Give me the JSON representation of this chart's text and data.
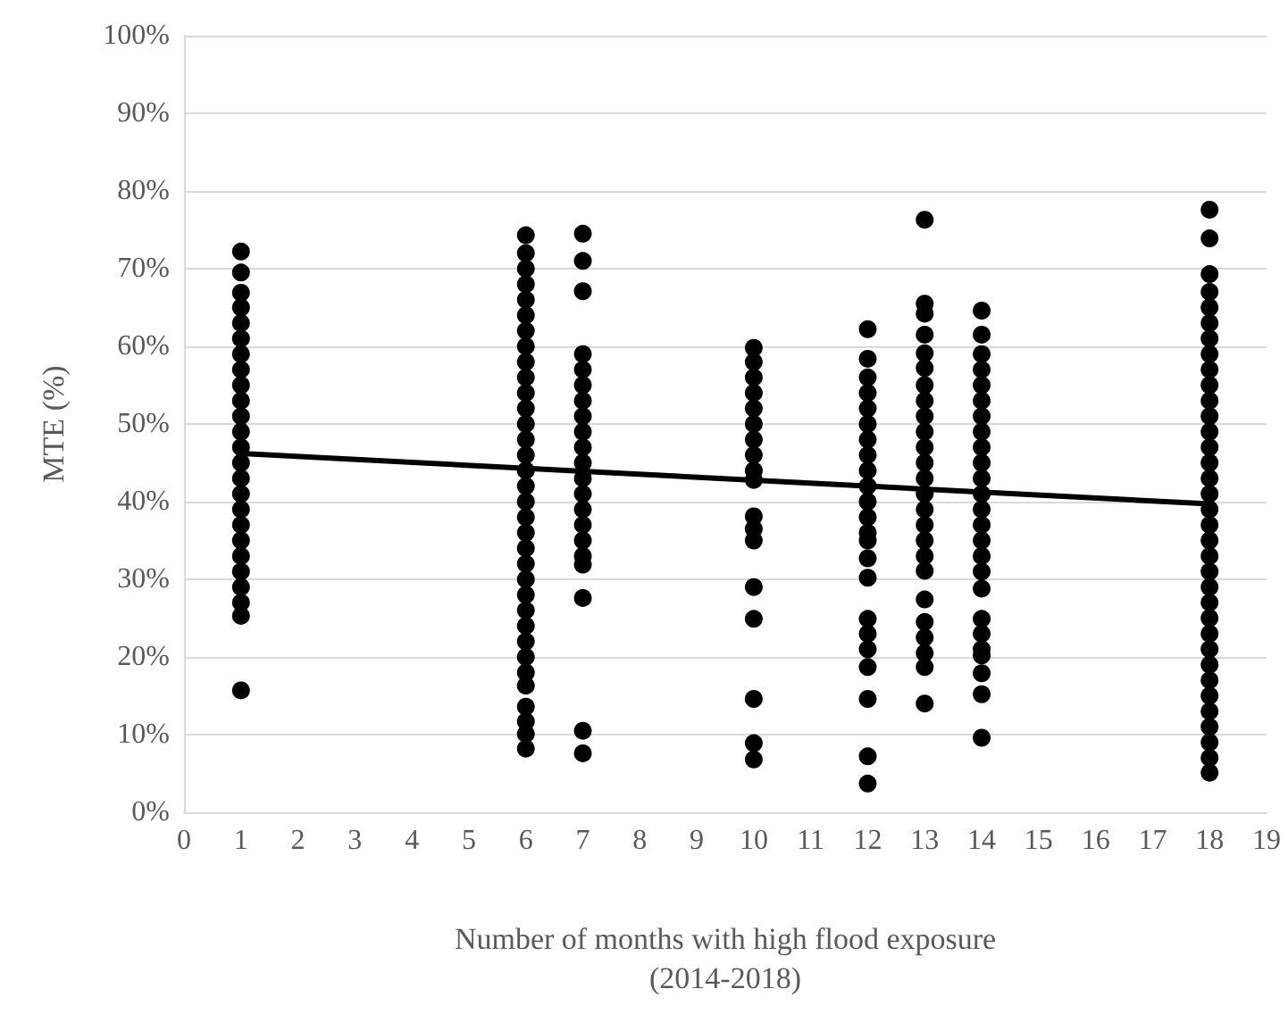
{
  "chart_data": {
    "type": "scatter",
    "xlabel": "Number of months with high flood exposure\n(2014-2018)",
    "ylabel": "MTE (%)",
    "xlim": [
      0,
      19
    ],
    "xticks": [
      0,
      1,
      2,
      3,
      4,
      5,
      6,
      7,
      8,
      9,
      10,
      11,
      12,
      13,
      14,
      15,
      16,
      17,
      18,
      19
    ],
    "ylim": [
      0,
      100
    ],
    "yticks": [
      {
        "value": 0,
        "label": "0%"
      },
      {
        "value": 10,
        "label": "10%"
      },
      {
        "value": 20,
        "label": "20%"
      },
      {
        "value": 30,
        "label": "30%"
      },
      {
        "value": 40,
        "label": "40%"
      },
      {
        "value": 50,
        "label": "50%"
      },
      {
        "value": 60,
        "label": "60%"
      },
      {
        "value": 70,
        "label": "70%"
      },
      {
        "value": 80,
        "label": "80%"
      },
      {
        "value": 90,
        "label": "90%"
      },
      {
        "value": 100,
        "label": "100%"
      }
    ],
    "grid": "y",
    "series": [
      {
        "color": "#000000",
        "marker": "circle",
        "x": [
          1,
          1,
          1,
          1,
          1,
          1,
          1,
          1,
          1,
          1,
          1,
          1,
          1,
          1,
          1,
          1,
          1,
          1,
          1,
          1,
          1,
          1,
          1,
          1,
          1,
          6,
          6,
          6,
          6,
          6,
          6,
          6,
          6,
          6,
          6,
          6,
          6,
          6,
          6,
          6,
          6,
          6,
          6,
          6,
          6,
          6,
          6,
          6,
          6,
          6,
          6,
          6,
          6,
          6,
          6,
          6,
          6,
          6,
          6,
          7,
          7,
          7,
          7,
          7,
          7,
          7,
          7,
          7,
          7,
          7,
          7,
          7,
          7,
          7,
          7,
          7,
          7,
          7,
          7,
          7,
          10,
          10,
          10,
          10,
          10,
          10,
          10,
          10,
          10,
          10,
          10,
          10,
          10,
          10,
          10,
          10,
          10,
          10,
          12,
          12,
          12,
          12,
          12,
          12,
          12,
          12,
          12,
          12,
          12,
          12,
          12,
          12,
          12,
          12,
          12,
          12,
          12,
          12,
          12,
          12,
          12,
          13,
          13,
          13,
          13,
          13,
          13,
          13,
          13,
          13,
          13,
          13,
          13,
          13,
          13,
          13,
          13,
          13,
          13,
          13,
          13,
          13,
          13,
          13,
          13,
          13,
          14,
          14,
          14,
          14,
          14,
          14,
          14,
          14,
          14,
          14,
          14,
          14,
          14,
          14,
          14,
          14,
          14,
          14,
          14,
          14,
          14,
          14,
          14,
          14,
          14,
          18,
          18,
          18,
          18,
          18,
          18,
          18,
          18,
          18,
          18,
          18,
          18,
          18,
          18,
          18,
          18,
          18,
          18,
          18,
          18,
          18,
          18,
          18,
          18,
          18,
          18,
          18,
          18,
          18,
          18,
          18,
          18,
          18,
          18,
          18
        ],
        "values": [
          72.2,
          69.5,
          66.9,
          65,
          63,
          61,
          59,
          57,
          55,
          53,
          51,
          49,
          47,
          45,
          43,
          41,
          39,
          37,
          35,
          33,
          31,
          29,
          27,
          25.3,
          15.7,
          74.3,
          72,
          70,
          68,
          66,
          64,
          62,
          60,
          58,
          56,
          54,
          52,
          50,
          48,
          46,
          44,
          42,
          40,
          38,
          36,
          34,
          32,
          30,
          28,
          26,
          24,
          22,
          20,
          18,
          16.3,
          13.6,
          11.7,
          10.1,
          8.2,
          74.5,
          71,
          67.1,
          59,
          57,
          55,
          53,
          51,
          49,
          47,
          45,
          43,
          41,
          39,
          37,
          35,
          33,
          31.9,
          27.6,
          10.5,
          7.6,
          59.8,
          58,
          56,
          54,
          52,
          50,
          48,
          46,
          44,
          42.8,
          38.1,
          36.5,
          35,
          29,
          24.9,
          14.6,
          8.9,
          6.8,
          62.2,
          58.4,
          56,
          54,
          52,
          50,
          48,
          46,
          44,
          42,
          40,
          38,
          36,
          35,
          32.7,
          30.2,
          24.9,
          23,
          21,
          18.7,
          14.6,
          7.2,
          3.7,
          76.3,
          65.5,
          64.2,
          61.5,
          59.1,
          57.2,
          55,
          53,
          51,
          49,
          47,
          45,
          43,
          41,
          39,
          37,
          35,
          33,
          31.1,
          27.4,
          24.5,
          22.5,
          20.5,
          18.7,
          14,
          64.6,
          61.5,
          59,
          57,
          55,
          53,
          51,
          49,
          47,
          45,
          43,
          41,
          39,
          37,
          35,
          33,
          31,
          28.8,
          24.9,
          23,
          21,
          20.2,
          17.9,
          15.2,
          9.6,
          77.6,
          73.9,
          69.3,
          67,
          65,
          63,
          61,
          59,
          57,
          55,
          53,
          51,
          49,
          47,
          45,
          43,
          41,
          39,
          37,
          35,
          33,
          31,
          29,
          27,
          25,
          23,
          21,
          19,
          17,
          15,
          13,
          11,
          9,
          7,
          5.1
        ]
      },
      {
        "type": "line",
        "color": "#000000",
        "marker": "none",
        "line_style": "solid",
        "x": [
          1,
          18
        ],
        "values": [
          46.2,
          39.7
        ]
      }
    ]
  }
}
